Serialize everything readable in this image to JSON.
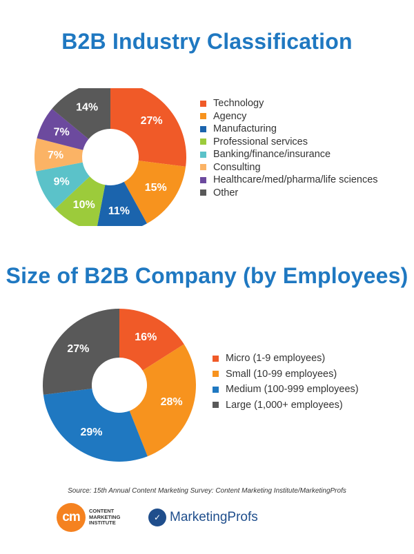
{
  "charts": {
    "industry": {
      "title": "B2B Industry Classification",
      "legend": [
        "Technology",
        "Agency",
        "Manufacturing",
        "Professional services",
        "Banking/finance/insurance",
        "Consulting",
        "Healthcare/med/pharma/life sciences",
        "Other"
      ]
    },
    "size": {
      "title": "Size of B2B Company (by Employees)",
      "legend": [
        "Micro (1-9 employees)",
        "Small (10-99 employees)",
        "Medium (100-999 employees)",
        "Large (1,000+ employees)"
      ]
    }
  },
  "chart_data": [
    {
      "type": "pie",
      "donut": true,
      "title": "B2B Industry Classification",
      "categories": [
        "Technology",
        "Agency",
        "Manufacturing",
        "Professional services",
        "Banking/finance/insurance",
        "Consulting",
        "Healthcare/med/pharma/life sciences",
        "Other"
      ],
      "values": [
        27,
        15,
        11,
        10,
        9,
        7,
        7,
        14
      ],
      "labels": [
        "27%",
        "15%",
        "11%",
        "10%",
        "9%",
        "7%",
        "7%",
        "14%"
      ],
      "colors": [
        "#f05a28",
        "#f7931e",
        "#1b64ad",
        "#9ccb3b",
        "#5bc2c9",
        "#fbb365",
        "#6c4a9e",
        "#595959"
      ],
      "legend_position": "right"
    },
    {
      "type": "pie",
      "donut": true,
      "title": "Size of B2B Company (by Employees)",
      "categories": [
        "Micro (1-9 employees)",
        "Small (10-99 employees)",
        "Medium (100-999 employees)",
        "Large (1,000+ employees)"
      ],
      "values": [
        16,
        28,
        29,
        27
      ],
      "labels": [
        "16%",
        "28%",
        "29%",
        "27%"
      ],
      "colors": [
        "#f05a28",
        "#f7931e",
        "#1f78c1",
        "#595959"
      ],
      "legend_position": "right"
    }
  ],
  "footer": {
    "source": "Source: 15th Annual Content Marketing Survey: Content Marketing Institute/MarketingProfs",
    "cmi_mark": "cm",
    "cmi_text": "CONTENT MARKETING INSTITUTE",
    "mp_text": "MarketingProfs"
  }
}
